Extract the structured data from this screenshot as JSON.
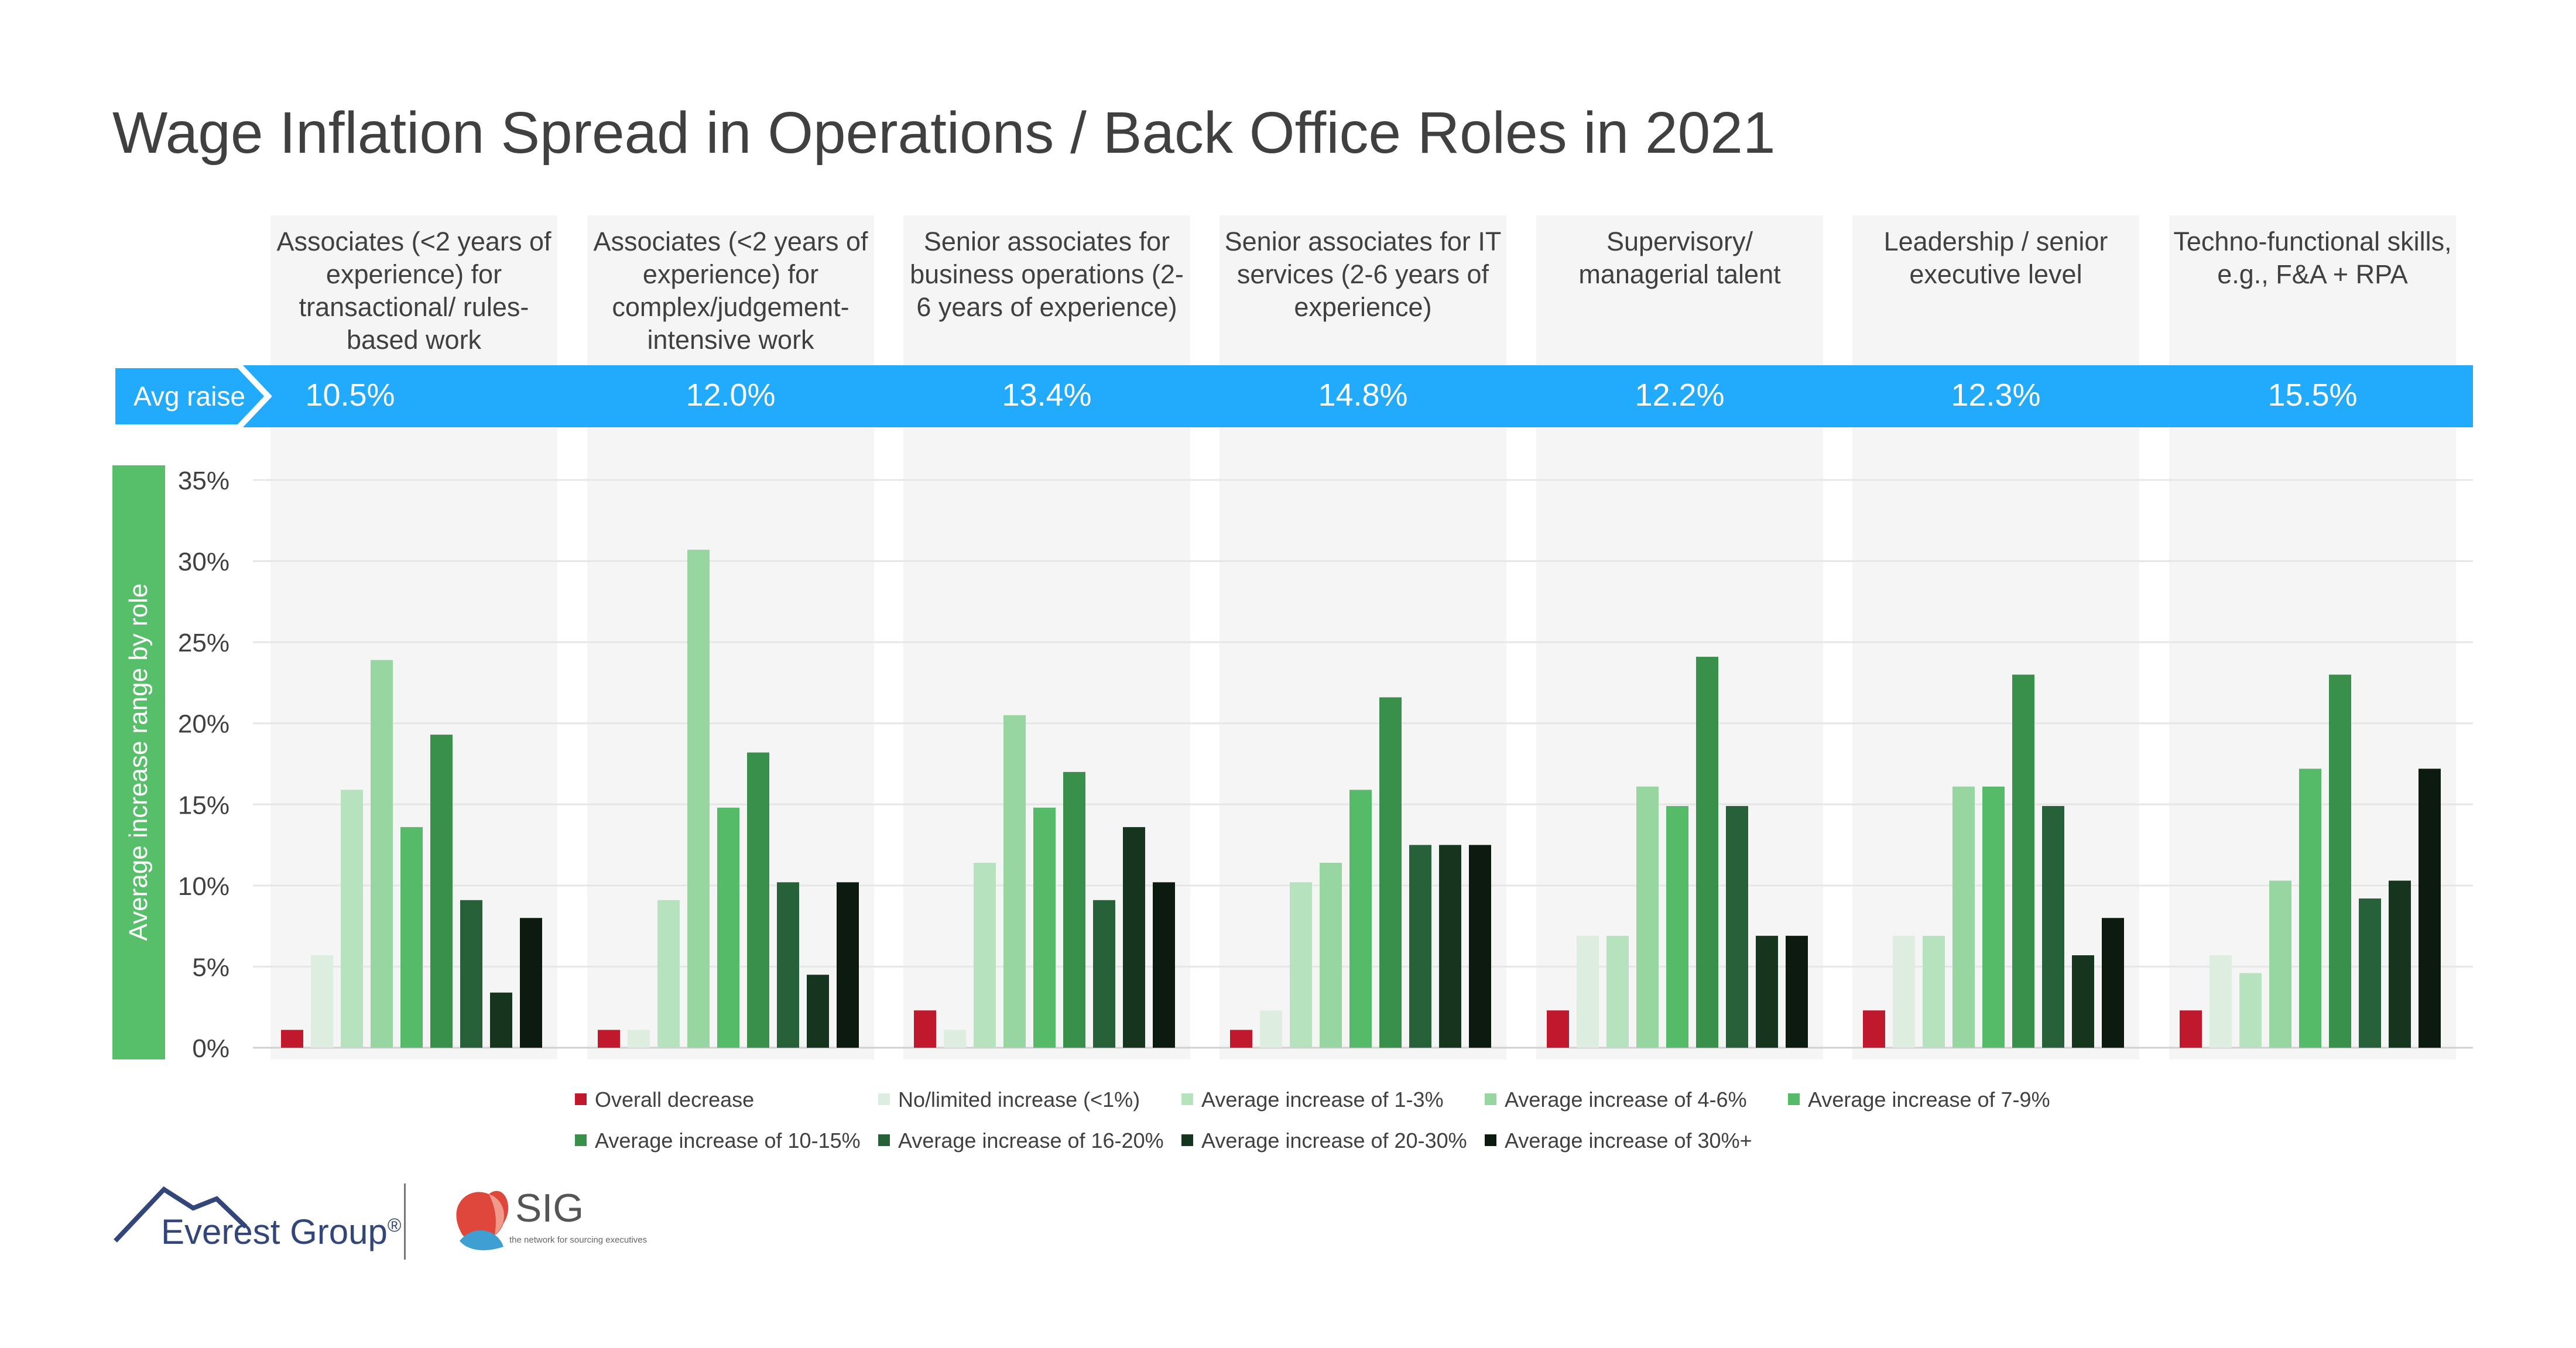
{
  "page": {
    "title": "Wage Inflation Spread in Operations / Back Office Roles in 2021",
    "avg_raise_label": "Avg raise",
    "logo_everest": "Everest Group",
    "logo_everest_mark": "®",
    "logo_sig": "SIG",
    "logo_sig_tagline": "the network for sourcing executives"
  },
  "colors": {
    "band": "#22abfc",
    "ylabel_box": "#57bf6a",
    "column_bg": "#f5f5f5",
    "gridline": "#e6e6e6"
  },
  "chart_data": {
    "type": "bar",
    "title": "Wage Inflation Spread in Operations / Back Office Roles in 2021",
    "ylabel": "Average increase range by role",
    "ylim": [
      0,
      35
    ],
    "y_ticks": [
      "0%",
      "5%",
      "10%",
      "15%",
      "20%",
      "25%",
      "30%",
      "35%"
    ],
    "grid": true,
    "legend_position": "bottom",
    "categories": [
      "Associates (<2 years of experience) for transactional/ rules-based work",
      "Associates (<2 years of experience) for complex/judgement-intensive work",
      "Senior associates for business operations (2-6 years of experience)",
      "Senior associates for IT services (2-6 years of experience)",
      "Supervisory/ managerial talent",
      "Leadership / senior executive level",
      "Techno-functional skills, e.g., F&A + RPA"
    ],
    "avg_raise": [
      "10.5%",
      "12.0%",
      "13.4%",
      "14.8%",
      "12.2%",
      "12.3%",
      "15.5%"
    ],
    "series": [
      {
        "name": "Overall decrease",
        "color": "#c0182d",
        "values": [
          1.1,
          1.1,
          2.3,
          1.1,
          2.3,
          2.3,
          2.3
        ]
      },
      {
        "name": "No/limited increase (<1%)",
        "color": "#ddeee0",
        "values": [
          5.7,
          1.1,
          1.1,
          2.3,
          6.9,
          6.9,
          5.7
        ]
      },
      {
        "name": "Average increase of 1-3%",
        "color": "#b7e2be",
        "values": [
          15.9,
          9.1,
          11.4,
          10.2,
          6.9,
          6.9,
          4.6
        ]
      },
      {
        "name": "Average increase of 4-6%",
        "color": "#97d6a0",
        "values": [
          23.9,
          30.7,
          20.5,
          11.4,
          16.1,
          16.1,
          10.3
        ]
      },
      {
        "name": "Average increase of 7-9%",
        "color": "#55bb69",
        "values": [
          13.6,
          14.8,
          14.8,
          15.9,
          14.9,
          16.1,
          17.2
        ]
      },
      {
        "name": "Average increase of 10-15%",
        "color": "#38904a",
        "values": [
          19.3,
          18.2,
          17.0,
          21.6,
          24.1,
          23.0,
          23.0
        ]
      },
      {
        "name": "Average increase of 16-20%",
        "color": "#27613a",
        "values": [
          9.1,
          10.2,
          9.1,
          12.5,
          14.9,
          14.9,
          9.2
        ]
      },
      {
        "name": "Average increase of 20-30%",
        "color": "#16351f",
        "values": [
          3.4,
          4.5,
          13.6,
          12.5,
          6.9,
          5.7,
          10.3
        ]
      },
      {
        "name": "Average increase of 30%+",
        "color": "#0c1a10",
        "values": [
          8.0,
          10.2,
          10.2,
          12.5,
          6.9,
          8.0,
          17.2
        ]
      }
    ]
  }
}
